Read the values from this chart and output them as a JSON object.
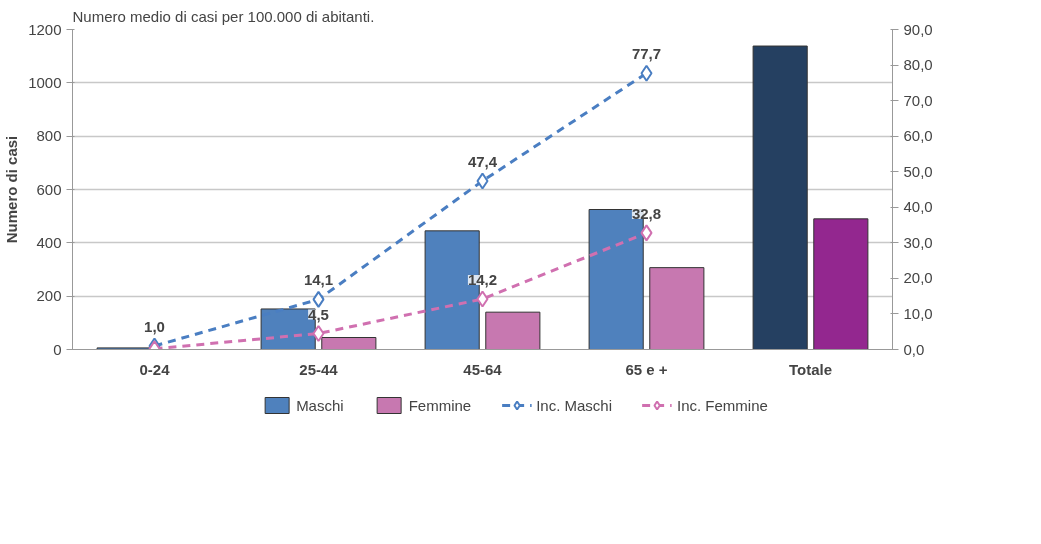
{
  "chart_data": {
    "type": "bar",
    "title": "Numero medio di casi per 100.000 di abitanti.",
    "ylabel": "Numero di casi",
    "categories": [
      "0-24",
      "25-44",
      "45-64",
      "65 e +",
      "Totale"
    ],
    "series": [
      {
        "name": "Maschi",
        "color": "#4f81bd",
        "colors": [
          "#4f81bd",
          "#4f81bd",
          "#4f81bd",
          "#4f81bd",
          "#254061"
        ],
        "values": [
          6,
          152,
          445,
          525,
          1138
        ]
      },
      {
        "name": "Femmine",
        "color": "#c778b0",
        "colors": [
          "#c778b0",
          "#c778b0",
          "#c778b0",
          "#c778b0",
          "#93278f"
        ],
        "values": [
          null,
          45,
          140,
          307,
          490
        ]
      },
      {
        "name": "Inc. Maschi",
        "type": "line",
        "axis": "y2",
        "color": "#4a7ec2",
        "marker": "diamond",
        "line_style": "dashed",
        "values": [
          1.0,
          14.1,
          47.4,
          77.7,
          null
        ],
        "value_labels": [
          "1,0",
          "14,1",
          "47,4",
          "77,7",
          null
        ]
      },
      {
        "name": "Inc. Femmine",
        "type": "line",
        "axis": "y2",
        "color": "#d070b0",
        "marker": "diamond",
        "line_style": "dashed",
        "values": [
          0.2,
          4.5,
          14.2,
          32.8,
          null
        ],
        "value_labels": [
          null,
          "4,5",
          "14,2",
          "32,8",
          null
        ]
      }
    ],
    "ylim": [
      0,
      1200
    ],
    "yticks": [
      0,
      200,
      400,
      600,
      800,
      1000,
      1200
    ],
    "y2lim": [
      0,
      90
    ],
    "y2ticks": [
      {
        "value": 0,
        "label": "0,0"
      },
      {
        "value": 10,
        "label": "10,0"
      },
      {
        "value": 20,
        "label": "20,0"
      },
      {
        "value": 30,
        "label": "30,0"
      },
      {
        "value": 40,
        "label": "40,0"
      },
      {
        "value": 50,
        "label": "50,0"
      },
      {
        "value": 60,
        "label": "60,0"
      },
      {
        "value": 70,
        "label": "70,0"
      },
      {
        "value": 80,
        "label": "80,0"
      },
      {
        "value": 90,
        "label": "90,0"
      }
    ],
    "grid": "y",
    "legend": "bottom"
  }
}
